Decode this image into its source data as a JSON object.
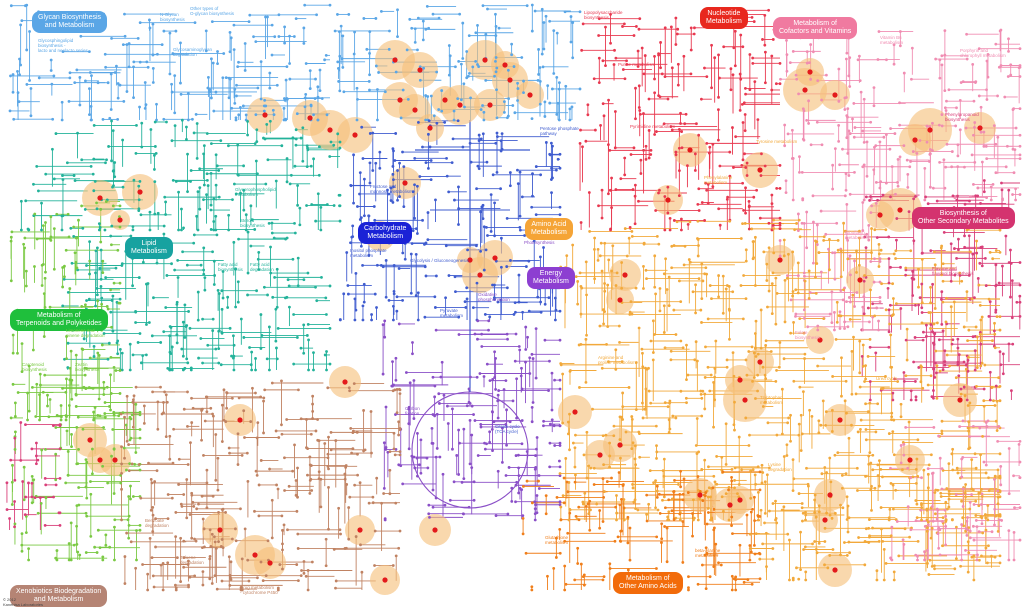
{
  "title": "",
  "palette": {
    "glycan": "#5aa6e6",
    "nucleotide": "#e8384f",
    "cofactor": "#f08db2",
    "secondary": "#d9407a",
    "lipid": "#23b29a",
    "carbohydrate": "#3f5ccf",
    "amino": "#f2a93b",
    "energy": "#8a4fc7",
    "terpenoid": "#7ac943",
    "xenobiotics": "#c08262",
    "other_amino": "#f07e1a",
    "highlight": "#f5c07a",
    "highlight_dot": "#e31a1c"
  },
  "categories": [
    {
      "id": "glycan",
      "label": "Glycan Biosynthesis\nand Metabolism",
      "color": "#5aa6e6"
    },
    {
      "id": "nucleotide",
      "label": "Nucleotide\nMetabolism",
      "color": "#e8281e"
    },
    {
      "id": "cofactor",
      "label": "Metabolism of\nCofactors and Vitamins",
      "color": "#f07aa0"
    },
    {
      "id": "secondary",
      "label": "Biosynthesis of\nOther Secondary Metabolites",
      "color": "#d4336f"
    },
    {
      "id": "lipid",
      "label": "Lipid\nMetabolism",
      "color": "#17a2a0"
    },
    {
      "id": "carbohydrate",
      "label": "Carbohydrate\nMetabolism",
      "color": "#1a22d6"
    },
    {
      "id": "amino",
      "label": "Amino Acid\nMetabolism",
      "color": "#f5a436"
    },
    {
      "id": "energy",
      "label": "Energy\nMetabolism",
      "color": "#8d3fd1"
    },
    {
      "id": "terpenoid",
      "label": "Metabolism of\nTerpenoids and Polyketides",
      "color": "#1fbf3c"
    },
    {
      "id": "xenobiotics",
      "label": "Xenobiotics Biodegradation\nand Metabolism",
      "color": "#b58474"
    },
    {
      "id": "other_amino",
      "label": "Metabolism of\nOther Amino Acids",
      "color": "#f26b0a"
    }
  ],
  "pathway_labels": [
    {
      "text": "Glycosphingolipid\nbiosynthesis -\nlacto and neolacto series",
      "color": "#5aa6e6"
    },
    {
      "text": "N-Glycan\nbiosynthesis",
      "color": "#5aa6e6"
    },
    {
      "text": "Other types of\nO-glycan biosynthesis",
      "color": "#5aa6e6"
    },
    {
      "text": "Glycosaminoglycan\ndegradation",
      "color": "#5aa6e6"
    },
    {
      "text": "Lipopolysaccharide\nbiosynthesis",
      "color": "#e8384f"
    },
    {
      "text": "Purine metabolism",
      "color": "#e8384f"
    },
    {
      "text": "Pyrimidine metabolism",
      "color": "#e8384f"
    },
    {
      "text": "Glycolysis / Gluconeogenesis",
      "color": "#3f5ccf"
    },
    {
      "text": "Citrate cycle\n(TCA cycle)",
      "color": "#3f5ccf"
    },
    {
      "text": "Pentose phosphate\npathway",
      "color": "#3f5ccf"
    },
    {
      "text": "Pyruvate\nmetabolism",
      "color": "#3f5ccf"
    },
    {
      "text": "Fructose and\nmannose metabolism",
      "color": "#3f5ccf"
    },
    {
      "text": "Inositol phosphate\nmetabolism",
      "color": "#3f5ccf"
    },
    {
      "text": "Oxidative\nphosphorylation",
      "color": "#8a4fc7"
    },
    {
      "text": "Photosynthesis",
      "color": "#8a4fc7"
    },
    {
      "text": "Carbon\nfixation",
      "color": "#8a4fc7"
    },
    {
      "text": "Fatty acid\nbiosynthesis",
      "color": "#23b29a"
    },
    {
      "text": "Fatty acid\ndegradation",
      "color": "#23b29a"
    },
    {
      "text": "Steroid\nbiosynthesis",
      "color": "#23b29a"
    },
    {
      "text": "Glycerophospholipid\nmetabolism",
      "color": "#23b29a"
    },
    {
      "text": "Carotenoid\nbiosynthesis",
      "color": "#7ac943"
    },
    {
      "text": "Zeatin\nbiosynthesis",
      "color": "#7ac943"
    },
    {
      "text": "Limonene and\npinene degradation",
      "color": "#7ac943"
    },
    {
      "text": "Arginine and\nproline metabolism",
      "color": "#f2a93b"
    },
    {
      "text": "Tyrosine metabolism",
      "color": "#f2a93b"
    },
    {
      "text": "Lysine\ndegradation",
      "color": "#f2a93b"
    },
    {
      "text": "Tryptophan\nmetabolism",
      "color": "#f2a93b"
    },
    {
      "text": "Urea cycle",
      "color": "#f2a93b"
    },
    {
      "text": "Phenylalanine\nmetabolism",
      "color": "#f2a93b"
    },
    {
      "text": "Glutathione\nmetabolism",
      "color": "#f07e1a"
    },
    {
      "text": "beta-Alanine\nmetabolism",
      "color": "#f07e1a"
    },
    {
      "text": "Benzoate\ndegradation",
      "color": "#c08262"
    },
    {
      "text": "Toluene\ndegradation",
      "color": "#c08262"
    },
    {
      "text": "Drug metabolism\n- cytochrome P450",
      "color": "#c08262"
    },
    {
      "text": "Phenylpropanoid\nbiosynthesis",
      "color": "#d9407a"
    },
    {
      "text": "Flavone and\nflavonol biosynthesis",
      "color": "#d9407a"
    },
    {
      "text": "Porphyrin and\nchlorophyll metabolism",
      "color": "#f08db2"
    },
    {
      "text": "Vitamin B6\nmetabolism",
      "color": "#f08db2"
    },
    {
      "text": "Folate\nbiosynthesis",
      "color": "#f08db2"
    },
    {
      "text": "Riboflavin\nmetabolism",
      "color": "#f08db2"
    }
  ],
  "credit": "© 2012\nKanehisa Laboratories",
  "highlighted_nodes": 64
}
